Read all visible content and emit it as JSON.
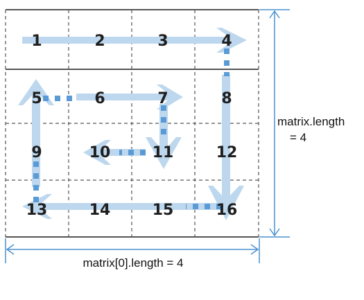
{
  "matrix": {
    "rows": [
      [
        "1",
        "2",
        "3",
        "4"
      ],
      [
        "5",
        "6",
        "7",
        "8"
      ],
      [
        "9",
        "10",
        "11",
        "12"
      ],
      [
        "13",
        "14",
        "15",
        "16"
      ]
    ]
  },
  "labels": {
    "height_line1": "matrix.length",
    "height_line2": "= 4",
    "width": "matrix[0].length = 4"
  },
  "colors": {
    "grid_solid": "#555555",
    "grid_dashed": "#555555",
    "arrow_fill": "#bdd7ee",
    "dash_path": "#5b9bd5",
    "dimension": "#4a90d0"
  }
}
